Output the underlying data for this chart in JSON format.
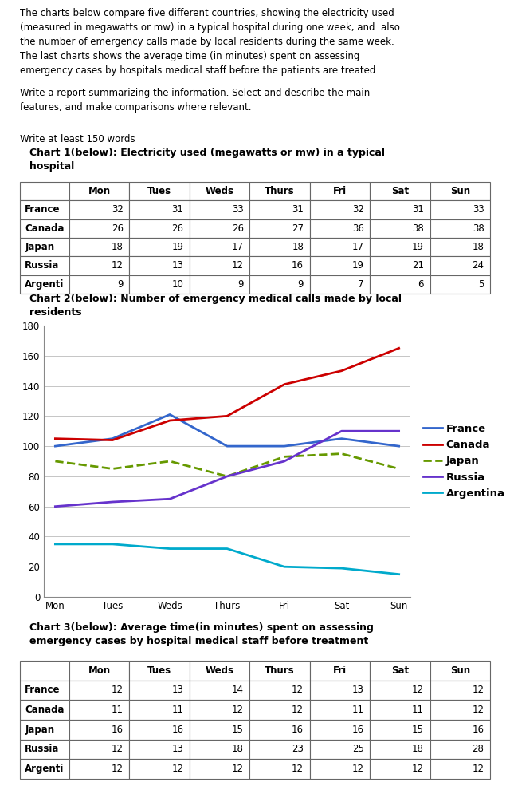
{
  "intro_text": "The charts below compare five different countries, showing the electricity used\n(measured in megawatts or mw) in a typical hospital during one week, and  also\nthe number of emergency calls made by local residents during the same week.\nThe last charts shows the average time (in minutes) spent on assessing\nemergency cases by hospitals medical staff before the patients are treated.",
  "task_text": "Write a report summarizing the information. Select and describe the main\nfeatures, and make comparisons where relevant.",
  "word_count_text": "Write at least 150 words",
  "chart1_title": "Chart 1(below): Electricity used (megawatts or mw) in a typical\nhospital",
  "chart2_title": "Chart 2(below): Number of emergency medical calls made by local\nresidents",
  "chart3_title": "Chart 3(below): Average time(in minutes) spent on assessing\nemergency cases by hospital medical staff before treatment",
  "days": [
    "Mon",
    "Tues",
    "Weds",
    "Thurs",
    "Fri",
    "Sat",
    "Sun"
  ],
  "countries": [
    "France",
    "Canada",
    "Japan",
    "Russia",
    "Argenti"
  ],
  "table1_data": [
    [
      32,
      31,
      33,
      31,
      32,
      31,
      33
    ],
    [
      26,
      26,
      26,
      27,
      36,
      38,
      38
    ],
    [
      18,
      19,
      17,
      18,
      17,
      19,
      18
    ],
    [
      12,
      13,
      12,
      16,
      19,
      21,
      24
    ],
    [
      9,
      10,
      9,
      9,
      7,
      6,
      5
    ]
  ],
  "chart2_data": {
    "France": [
      100,
      105,
      121,
      100,
      100,
      105,
      100
    ],
    "Canada": [
      105,
      104,
      117,
      120,
      141,
      150,
      165
    ],
    "Japan": [
      90,
      85,
      90,
      80,
      93,
      95,
      85
    ],
    "Russia": [
      60,
      63,
      65,
      80,
      90,
      110,
      110
    ],
    "Argentina": [
      35,
      35,
      32,
      32,
      20,
      19,
      15
    ]
  },
  "line_colors": {
    "France": "#3366cc",
    "Canada": "#cc0000",
    "Japan": "#669900",
    "Russia": "#6633cc",
    "Argentina": "#00aacc"
  },
  "line_styles": {
    "France": "-",
    "Canada": "-",
    "Japan": "--",
    "Russia": "-",
    "Argentina": "-"
  },
  "table3_data": [
    [
      12,
      13,
      14,
      12,
      13,
      12,
      12
    ],
    [
      11,
      11,
      12,
      12,
      11,
      11,
      12
    ],
    [
      16,
      16,
      15,
      16,
      16,
      15,
      16
    ],
    [
      12,
      13,
      18,
      23,
      25,
      18,
      28
    ],
    [
      12,
      12,
      12,
      12,
      12,
      12,
      12
    ]
  ],
  "bg_color": "#ffffff",
  "grid_color": "#bbbbbb",
  "text_fontsize": 8.5,
  "title_fontsize": 9.0,
  "table_fontsize": 8.5
}
